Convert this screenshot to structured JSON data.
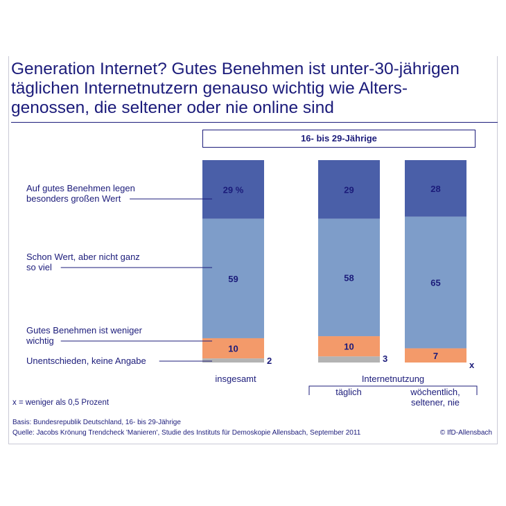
{
  "title": "Generation Internet? Gutes Benehmen ist unter-30-jährigen\ntäglichen Internetnutzern genauso wichtig wie Alters-\ngenossen, die seltener oder nie online sind",
  "group_header": "16- bis 29-Jährige",
  "internet_label": "Internetnutzung",
  "footnote": "x = weniger als 0,5 Prozent",
  "basis": "Basis: Bundesrepublik Deutschland, 16- bis 29-Jährige",
  "source": "Quelle: Jacobs Krönung Trendcheck 'Manieren', Studie des Instituts für Demoskopie Allensbach, September 2011",
  "copyright": "© IfD-Allensbach",
  "chart_data": {
    "type": "bar",
    "stacked": true,
    "percent_suffix_on_first": " %",
    "categories": [
      "insgesamt",
      "täglich",
      "wöchentlich,\nseltener, nie"
    ],
    "series": [
      {
        "name": "Auf gutes Benehmen legen besonders großen Wert",
        "color": "#4a5fa8",
        "values": [
          29,
          29,
          28
        ],
        "labels": [
          "29 %",
          "29",
          "28"
        ]
      },
      {
        "name": "Schon Wert, aber nicht ganz so viel",
        "color": "#7e9dc9",
        "values": [
          59,
          58,
          65
        ],
        "labels": [
          "59",
          "58",
          "65"
        ]
      },
      {
        "name": "Gutes Benehmen ist weniger wichtig",
        "color": "#f39a6a",
        "values": [
          10,
          10,
          7
        ],
        "labels": [
          "10",
          "10",
          "7"
        ]
      },
      {
        "name": "Unentschieden, keine Angabe",
        "color": "#b3b3b3",
        "values": [
          2,
          3,
          0
        ],
        "labels": [
          "2",
          "3",
          "x"
        ]
      }
    ],
    "legend_labels": [
      "Auf gutes Benehmen legen\nbesonders großen Wert",
      "Schon Wert, aber nicht ganz\nso viel",
      "Gutes Benehmen ist weniger\nwichtig",
      "Unentschieden, keine Angabe"
    ],
    "ylim": [
      0,
      100
    ]
  }
}
